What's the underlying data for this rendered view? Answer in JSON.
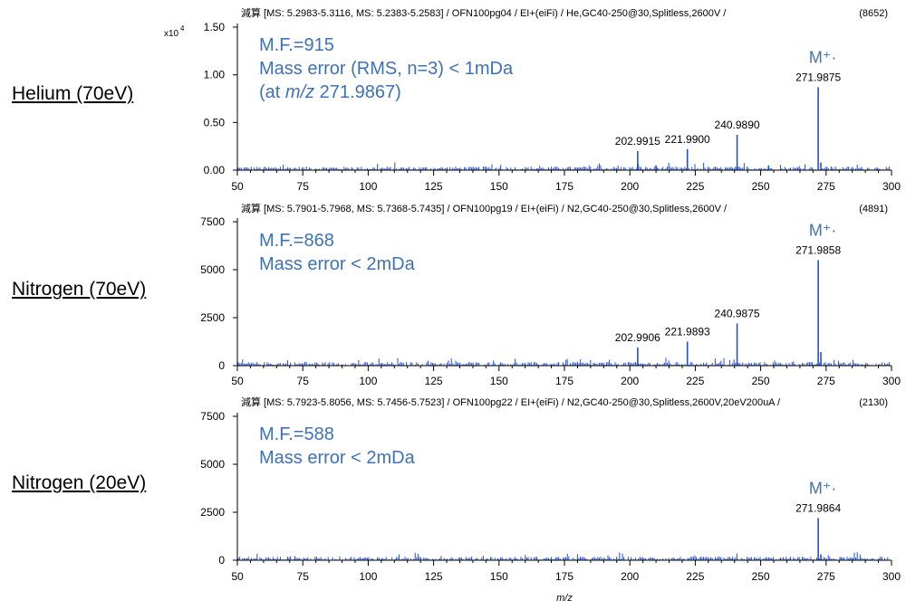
{
  "x_axis_label": "m/z",
  "chart_data": [
    {
      "type": "line",
      "side_label": "Helium (70eV)",
      "header": "減算 [MS: 5.2983-5.3116, MS: 5.2383-5.2583] / OFN100pg04 / EI+(eiFi) / He,GC40-250@30,Splitless,2600V /",
      "header_count": "(8652)",
      "exponent": "x10",
      "exponent_power": "4",
      "xlim": [
        50,
        300
      ],
      "ylim": [
        0,
        1.5
      ],
      "x_ticks": [
        "50",
        "75",
        "100",
        "125",
        "150",
        "175",
        "200",
        "225",
        "250",
        "275",
        "300"
      ],
      "y_ticks": [
        {
          "value": 0,
          "label": "0.00"
        },
        {
          "value": 0.5,
          "label": "0.50"
        },
        {
          "value": 1.0,
          "label": "1.00"
        },
        {
          "value": 1.5,
          "label": "1.50"
        }
      ],
      "notes": [
        "M.F.=915",
        "Mass error (RMS, n=3) < 1mDa",
        "(at m/z 271.9867)"
      ],
      "ion_label": "M⁺·",
      "peaks": [
        {
          "x": 202.9915,
          "y": 0.2,
          "label": "202.9915"
        },
        {
          "x": 210.0,
          "y": 0.05,
          "label": ""
        },
        {
          "x": 221.99,
          "y": 0.22,
          "label": "221.9900"
        },
        {
          "x": 240.989,
          "y": 0.37,
          "label": "240.9890"
        },
        {
          "x": 253.0,
          "y": 0.05,
          "label": ""
        },
        {
          "x": 271.9875,
          "y": 0.87,
          "label": "271.9875"
        },
        {
          "x": 273.0,
          "y": 0.08,
          "label": ""
        }
      ]
    },
    {
      "type": "line",
      "side_label": "Nitrogen (70eV)",
      "header": "減算 [MS: 5.7901-5.7968, MS: 5.7368-5.7435] / OFN100pg19 / EI+(eiFi) / N2,GC40-250@30,Splitless,2600V /",
      "header_count": "(4891)",
      "exponent": "",
      "exponent_power": "",
      "xlim": [
        50,
        300
      ],
      "ylim": [
        0,
        7500
      ],
      "x_ticks": [
        "50",
        "75",
        "100",
        "125",
        "150",
        "175",
        "200",
        "225",
        "250",
        "275",
        "300"
      ],
      "y_ticks": [
        {
          "value": 0,
          "label": "0"
        },
        {
          "value": 2500,
          "label": "2500"
        },
        {
          "value": 5000,
          "label": "5000"
        },
        {
          "value": 7500,
          "label": "7500"
        }
      ],
      "notes": [
        "M.F.=868",
        "Mass error < 2mDa"
      ],
      "ion_label": "M⁺·",
      "peaks": [
        {
          "x": 202.9906,
          "y": 950,
          "label": "202.9906"
        },
        {
          "x": 221.9893,
          "y": 1250,
          "label": "221.9893"
        },
        {
          "x": 240.9875,
          "y": 2200,
          "label": "240.9875"
        },
        {
          "x": 271.9858,
          "y": 5500,
          "label": "271.9858"
        },
        {
          "x": 273.0,
          "y": 700,
          "label": ""
        }
      ]
    },
    {
      "type": "line",
      "side_label": "Nitrogen (20eV)",
      "header": "減算 [MS: 5.7923-5.8056, MS: 5.7456-5.7523] / OFN100pg22 / EI+(eiFi) / N2,GC40-250@30,Splitless,2600V,20eV200uA /",
      "header_count": "(2130)",
      "exponent": "",
      "exponent_power": "",
      "xlim": [
        50,
        300
      ],
      "ylim": [
        0,
        7500
      ],
      "x_ticks": [
        "50",
        "75",
        "100",
        "125",
        "150",
        "175",
        "200",
        "225",
        "250",
        "275",
        "300"
      ],
      "y_ticks": [
        {
          "value": 0,
          "label": "0"
        },
        {
          "value": 2500,
          "label": "2500"
        },
        {
          "value": 5000,
          "label": "5000"
        },
        {
          "value": 7500,
          "label": "7500"
        }
      ],
      "notes": [
        "M.F.=588",
        "Mass error < 2mDa"
      ],
      "ion_label": "M⁺·",
      "peaks": [
        {
          "x": 271.9864,
          "y": 2200,
          "label": "271.9864"
        },
        {
          "x": 273.0,
          "y": 300,
          "label": ""
        }
      ]
    }
  ],
  "colors": {
    "trace": "#1f4fe0",
    "note": "#3e72b6",
    "axis": "#000000"
  }
}
